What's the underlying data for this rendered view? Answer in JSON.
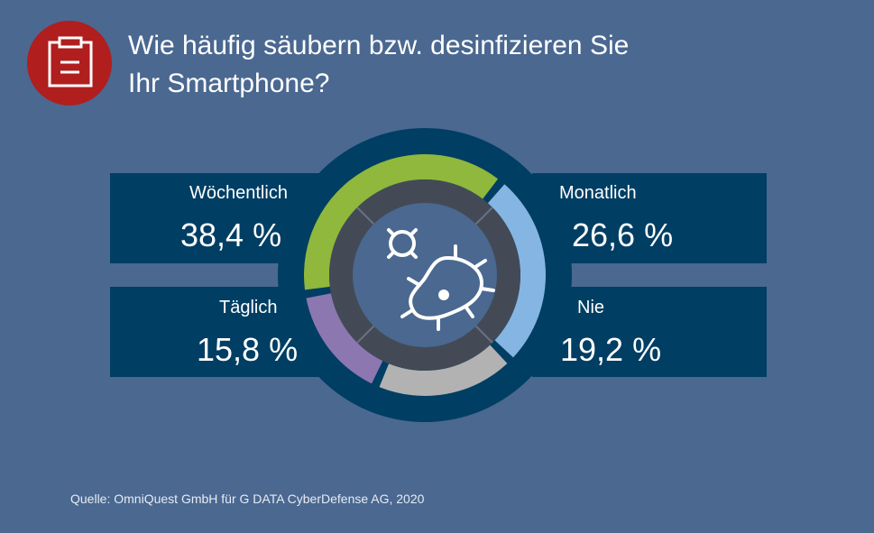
{
  "title": "Wie häufig säubern bzw. desinfizieren Sie Ihr Smartphone?",
  "title_lines": [
    "Wie häufig säubern bzw. desinfizieren Sie",
    "Ihr Smartphone?"
  ],
  "title_icon": "clipboard-icon",
  "center_icon": "bacteria-icon",
  "source": "Quelle: OmniQuest GmbH für G DATA CyberDefense AG, 2020",
  "colors": {
    "background": "#4a6890",
    "panel": "#003e63",
    "title_badge": "#b01e1e",
    "inner_ring": "#434a56",
    "center": "#4a6890"
  },
  "chart_data": {
    "type": "pie",
    "variant": "donut",
    "title": "Wie häufig säubern bzw. desinfizieren Sie Ihr Smartphone?",
    "unit": "%",
    "categories": [
      "Wöchentlich",
      "Monatlich",
      "Nie",
      "Täglich"
    ],
    "values": [
      38.4,
      26.6,
      19.2,
      15.8
    ],
    "value_labels": [
      "38,4 %",
      "26,6 %",
      "19,2 %",
      "15,8 %"
    ],
    "colors": [
      "#8fb83c",
      "#85b6e3",
      "#b2b2b2",
      "#8c77b0"
    ],
    "start_angle_deg": -99,
    "direction": "clockwise"
  }
}
